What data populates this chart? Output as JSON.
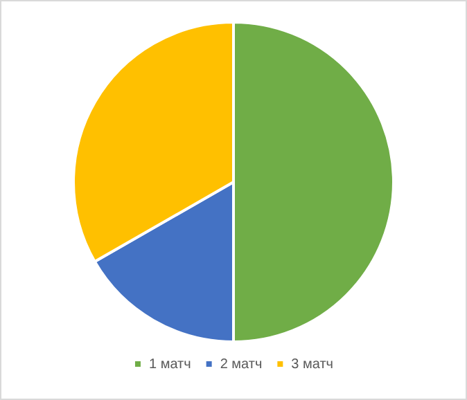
{
  "chart_data": {
    "type": "pie",
    "categories": [
      "1 матч",
      "2 матч",
      "3 матч"
    ],
    "values": [
      50,
      16.7,
      33.3
    ],
    "colors": [
      "#70ad47",
      "#4472c4",
      "#ffc000"
    ],
    "legend": "bottom"
  }
}
